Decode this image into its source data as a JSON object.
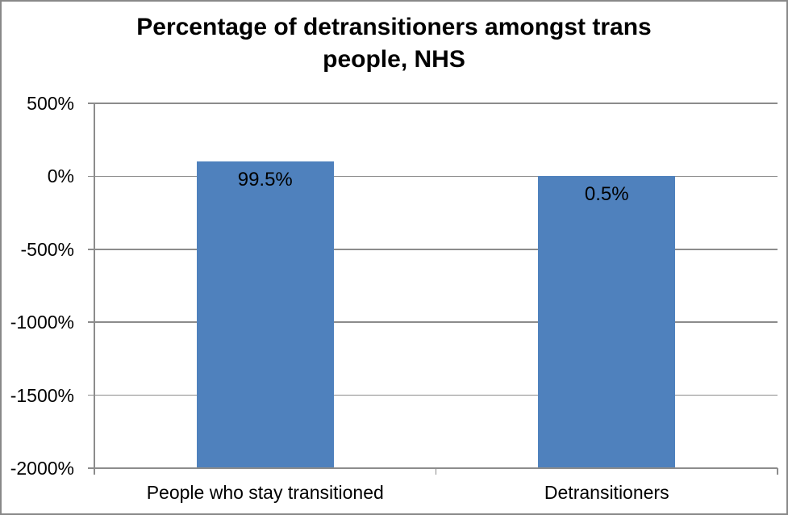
{
  "chart_data": {
    "type": "bar",
    "title": "Percentage of detransitioners amongst trans people, NHS",
    "categories": [
      "People who stay transitioned",
      "Detransitioners"
    ],
    "values": [
      99.5,
      0.5
    ],
    "data_labels": [
      "99.5%",
      "0.5%"
    ],
    "y_ticks": [
      {
        "label": "500%",
        "value": 500
      },
      {
        "label": "0%",
        "value": 0
      },
      {
        "label": "-500%",
        "value": -500
      },
      {
        "label": "-1000%",
        "value": -1000
      },
      {
        "label": "-1500%",
        "value": -1500
      },
      {
        "label": "-2000%",
        "value": -2000
      }
    ],
    "ylim": [
      -2000,
      500
    ],
    "xlabel": "",
    "ylabel": "",
    "legend": "none",
    "grid": "horizontal",
    "bars_extend_to_plot_bottom": true,
    "colors": {
      "bar_fill": "#4F81BD",
      "gridline": "#8C8C8C",
      "axis_line": "#8C8C8C",
      "text": "#000000",
      "background": "#FFFFFF",
      "outer_border": "#898989"
    }
  }
}
